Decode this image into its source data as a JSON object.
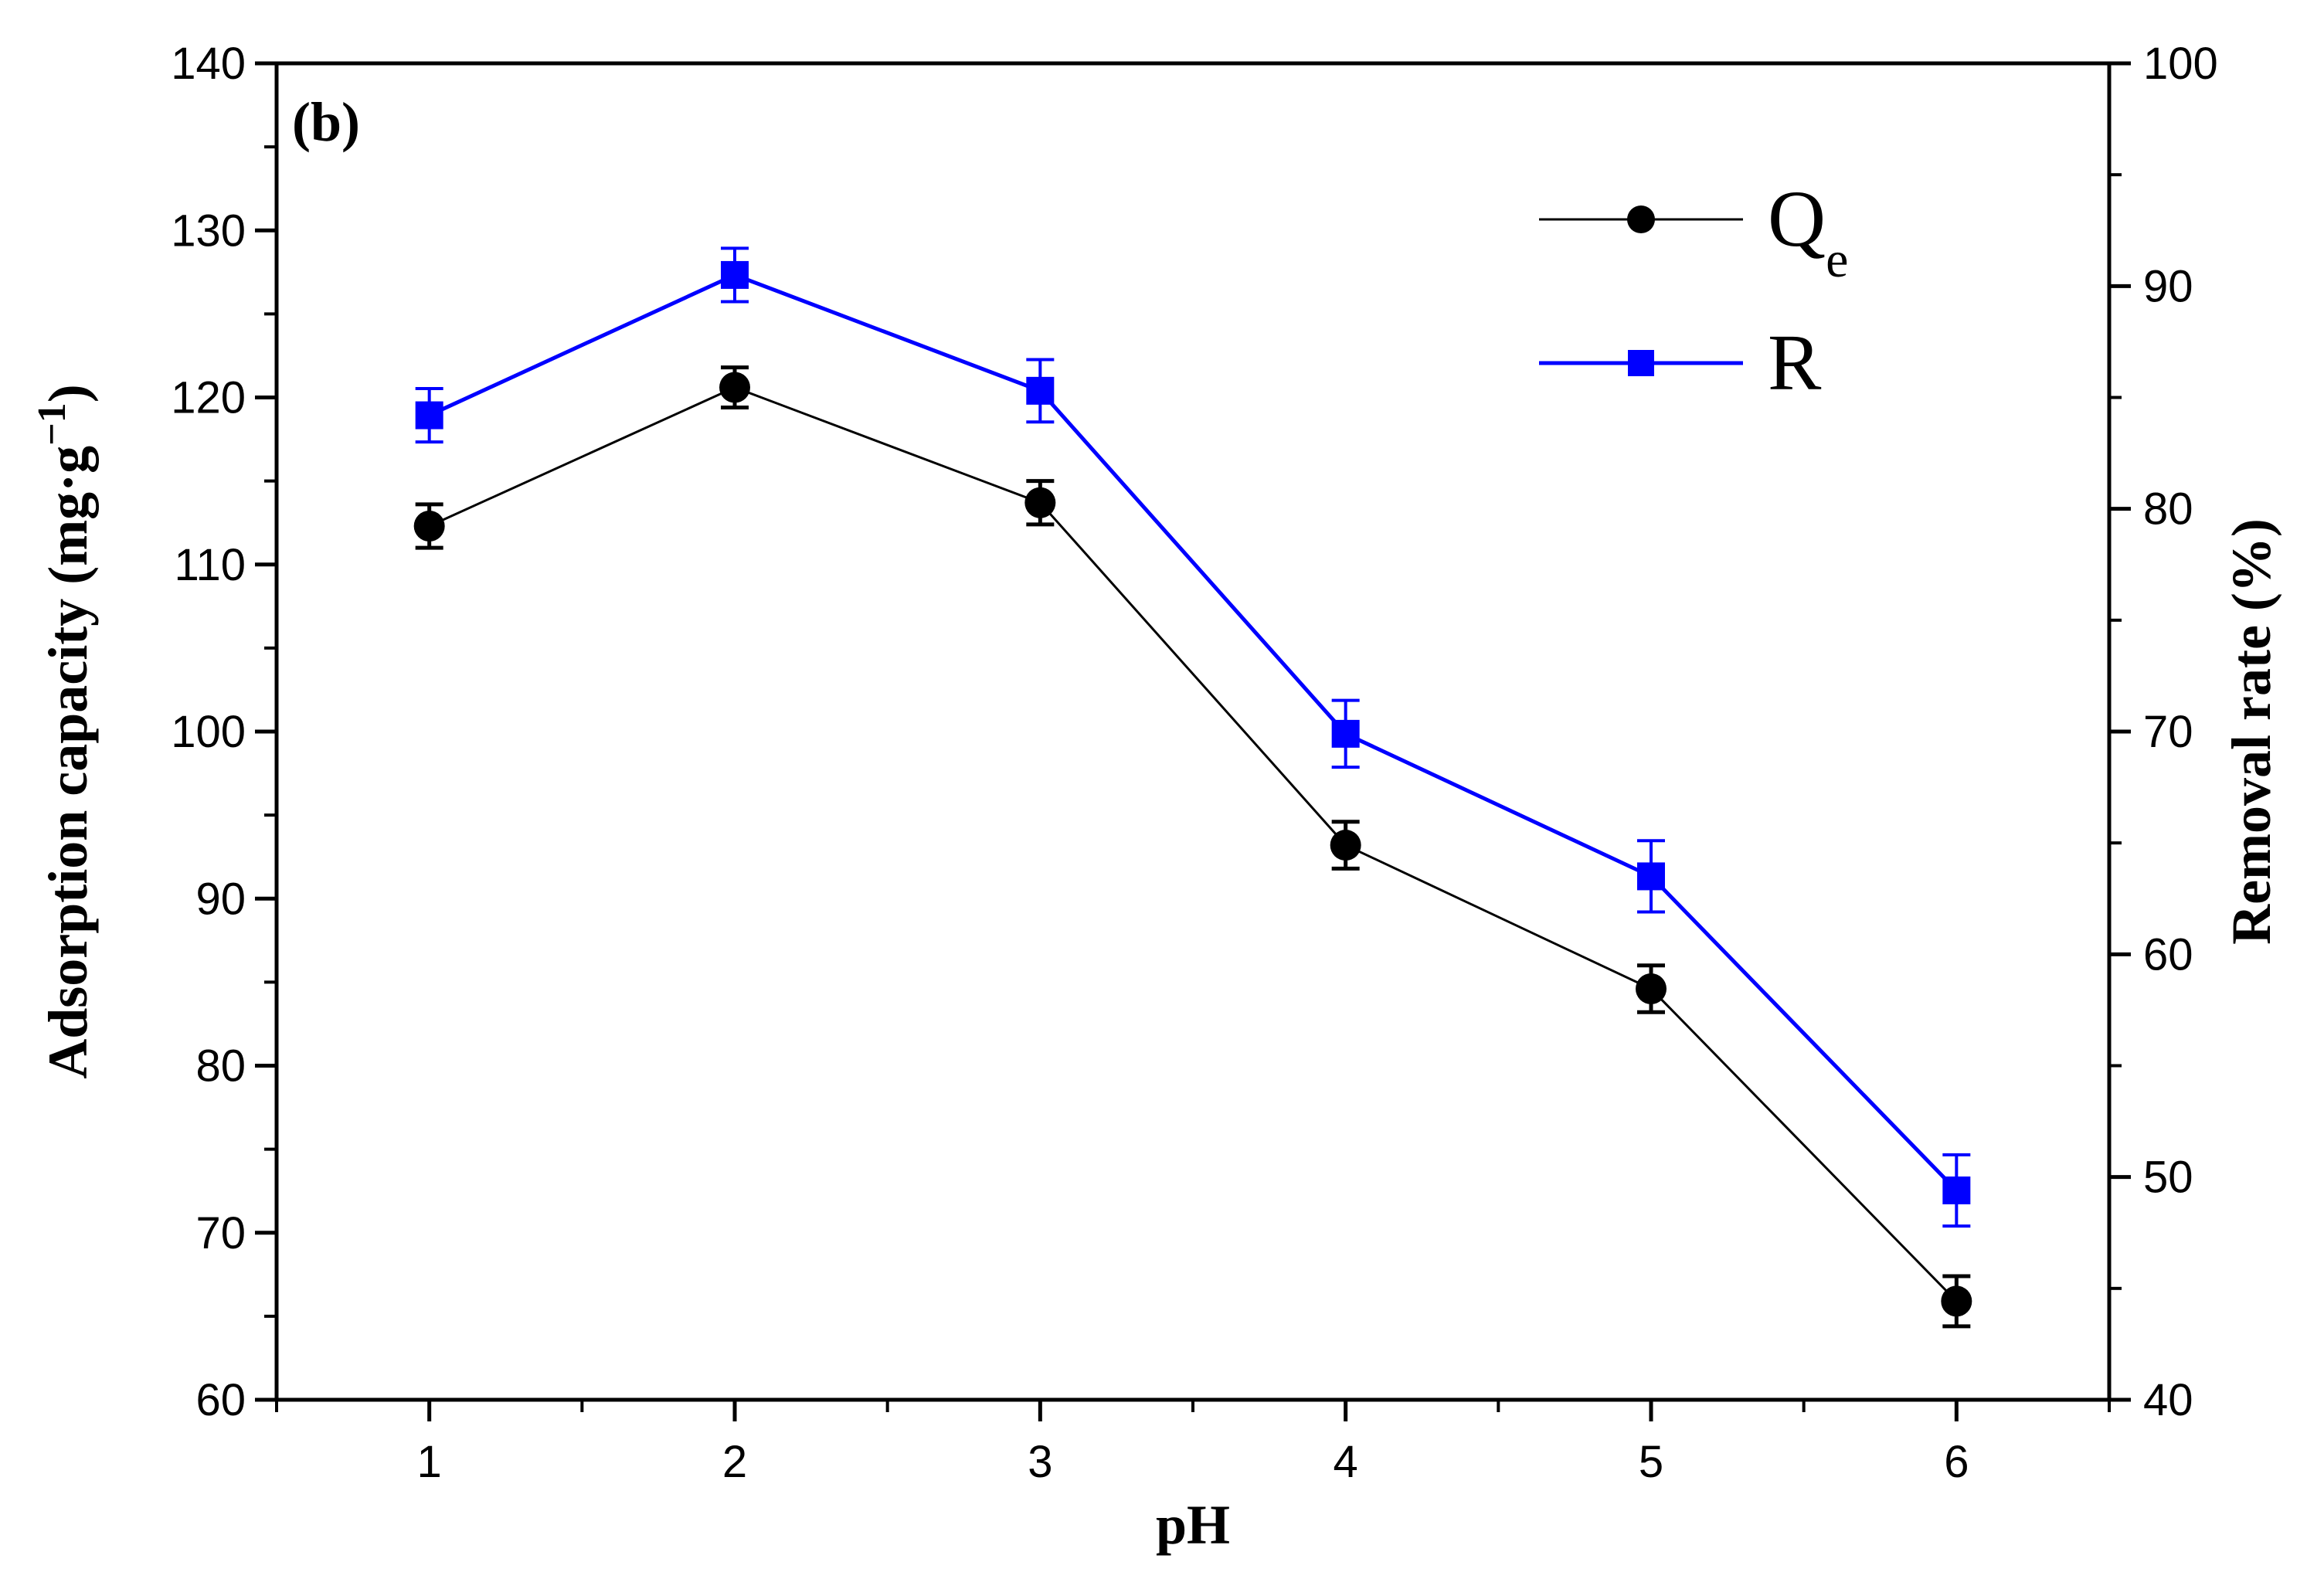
{
  "chart_data": {
    "type": "line",
    "panel_label": "(b)",
    "xlabel": "pH",
    "ylabel": "Adsorption capacity (mg·g",
    "ylabel_superscript": "−1",
    "ylabel_close": ")",
    "y2label": "Removal rate (%)",
    "x": [
      1,
      2,
      3,
      4,
      5,
      6
    ],
    "x_ticks": [
      "1",
      "2",
      "3",
      "4",
      "5",
      "6"
    ],
    "xlim": [
      0.5,
      6.5
    ],
    "ylim": [
      60,
      140
    ],
    "y_ticks": [
      "60",
      "70",
      "80",
      "90",
      "100",
      "110",
      "120",
      "130",
      "140"
    ],
    "y2lim": [
      40,
      100
    ],
    "y2_ticks": [
      "40",
      "50",
      "60",
      "70",
      "80",
      "90",
      "100"
    ],
    "series": [
      {
        "name": "Qe",
        "legend_main": "Q",
        "legend_sub": "e",
        "axis": "left",
        "color": "#000000",
        "marker": "circle",
        "values": [
          112.3,
          120.6,
          113.7,
          93.2,
          84.6,
          65.9
        ],
        "errors": [
          1.3,
          1.2,
          1.3,
          1.4,
          1.4,
          1.5
        ]
      },
      {
        "name": "R",
        "legend_main": "R",
        "legend_sub": "",
        "axis": "right",
        "color": "#0000ff",
        "marker": "square",
        "values": [
          84.2,
          90.5,
          85.3,
          69.9,
          63.5,
          49.4
        ],
        "errors": [
          1.2,
          1.2,
          1.4,
          1.5,
          1.6,
          1.6
        ]
      }
    ],
    "legend_position": "top-right"
  }
}
